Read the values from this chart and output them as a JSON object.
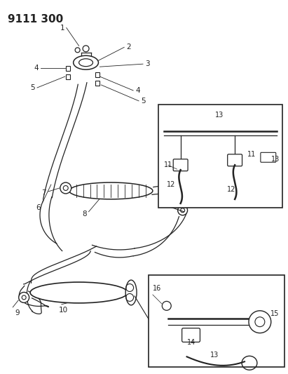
{
  "title": "9111 300",
  "bg_color": "#ffffff",
  "line_color": "#222222",
  "title_fontsize": 11,
  "label_fontsize": 7.5,
  "fig_width": 4.11,
  "fig_height": 5.33,
  "dpi": 100
}
